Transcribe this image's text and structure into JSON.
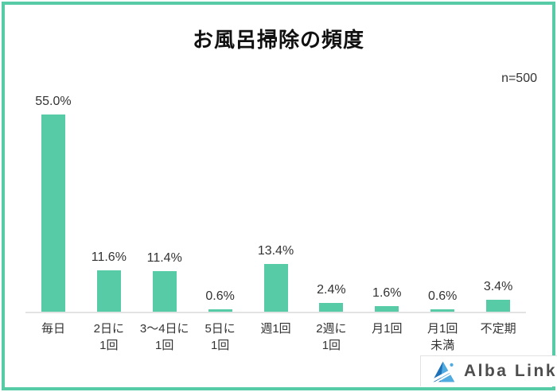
{
  "page": {
    "background_color": "#ffffff",
    "frame_color": "#57cba5"
  },
  "chart_data": {
    "type": "bar",
    "title": "お風呂掃除の頻度",
    "sample_size_label": "n=500",
    "categories": [
      [
        "毎日"
      ],
      [
        "2日に",
        "1回"
      ],
      [
        "3〜4日に",
        "1回"
      ],
      [
        "5日に",
        "1回"
      ],
      [
        "週1回"
      ],
      [
        "2週に",
        "1回"
      ],
      [
        "月1回"
      ],
      [
        "月1回",
        "未満"
      ],
      [
        "不定期"
      ]
    ],
    "values": [
      55.0,
      11.6,
      11.4,
      0.6,
      13.4,
      2.4,
      1.6,
      0.6,
      3.4
    ],
    "value_labels": [
      "55.0%",
      "11.6%",
      "11.4%",
      "0.6%",
      "13.4%",
      "2.4%",
      "1.6%",
      "0.6%",
      "3.4%"
    ],
    "unit": "%",
    "ylim": [
      0,
      60
    ],
    "grid": false,
    "legend": false,
    "bar_color": "#57cba5",
    "axis_color": "#e3e3e3",
    "value_label_color": "#333333"
  },
  "logo": {
    "text": "Alba Link",
    "icon": "alba-link-triangle-icon",
    "icon_colors": {
      "dark_blue": "#1d71b8",
      "light_blue": "#4fabe0"
    }
  }
}
